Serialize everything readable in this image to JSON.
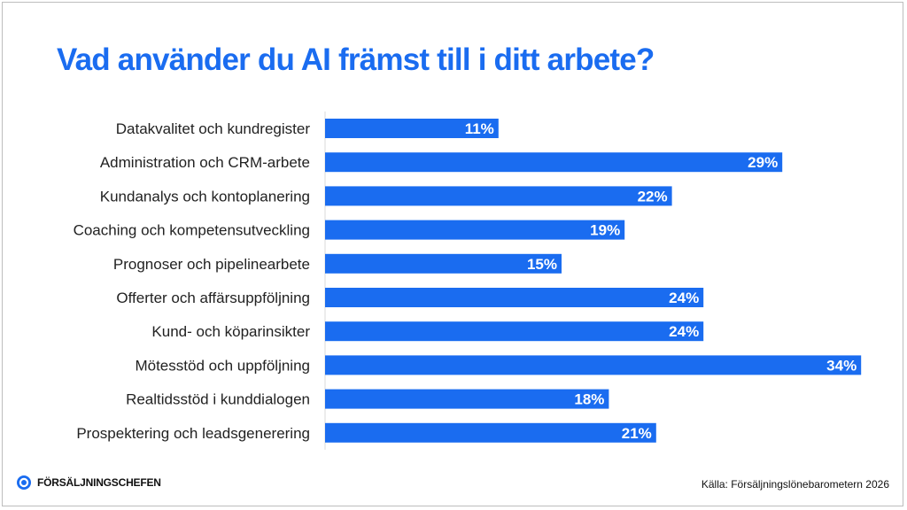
{
  "colors": {
    "accent": "#1a6cf0",
    "bar": "#1a6cf0",
    "text": "#222222",
    "bar_label": "#ffffff"
  },
  "brand": {
    "name": "FÖRSÄLJNINGSCHEFEN",
    "icon": "target-logo-icon"
  },
  "source": "Källa: Försäljningslönebarometern 2026",
  "chart_data": {
    "type": "bar",
    "orientation": "horizontal",
    "title": "Vad använder du AI främst till i ditt arbete?",
    "xlabel": "",
    "ylabel": "",
    "unit": "%",
    "xlim": [
      0,
      35
    ],
    "grid": false,
    "legend": "none",
    "categories": [
      "Datakvalitet och kundregister",
      "Administration och CRM-arbete",
      "Kundanalys och kontoplanering",
      "Coaching och kompetensutveckling",
      "Prognoser och pipelinearbete",
      "Offerter och affärsuppföljning",
      "Kund- och köparinsikter",
      "Mötesstöd och uppföljning",
      "Realtidsstöd i kunddialogen",
      "Prospektering och leadsgenerering"
    ],
    "values": [
      11,
      29,
      22,
      19,
      15,
      24,
      24,
      34,
      18,
      21
    ],
    "data_labels": [
      "11%",
      "29%",
      "22%",
      "19%",
      "15%",
      "24%",
      "24%",
      "34%",
      "18%",
      "21%"
    ]
  }
}
